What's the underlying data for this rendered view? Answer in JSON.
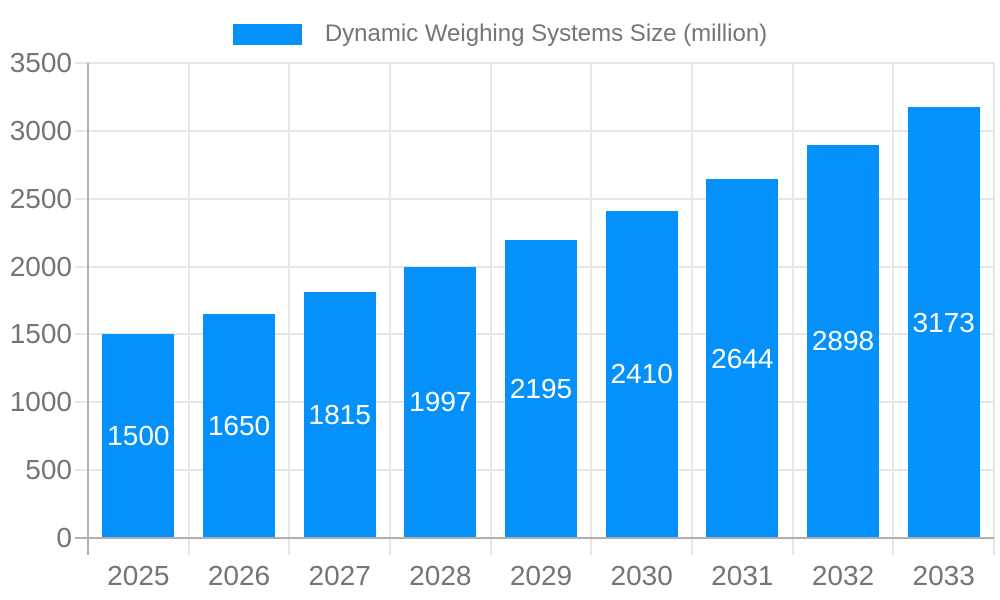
{
  "chart_data": {
    "type": "bar",
    "series_name": "Dynamic Weighing Systems Size (million)",
    "categories": [
      "2025",
      "2026",
      "2027",
      "2028",
      "2029",
      "2030",
      "2031",
      "2032",
      "2033"
    ],
    "values": [
      1500,
      1650,
      1815,
      1997,
      2195,
      2410,
      2644,
      2898,
      3173
    ],
    "data_labels": "inside-center",
    "legend_position": "top",
    "grid": true,
    "ylim": [
      0,
      3500
    ],
    "yticks": [
      0,
      500,
      1000,
      1500,
      2000,
      2500,
      3000,
      3500
    ],
    "colors": {
      "bar": "#0591fb",
      "bar_label": "#ffffff",
      "axis_text": "#757575",
      "grid_line": "#e6e6e6",
      "axis_line": "#b0b0b0",
      "background": "#ffffff"
    }
  }
}
